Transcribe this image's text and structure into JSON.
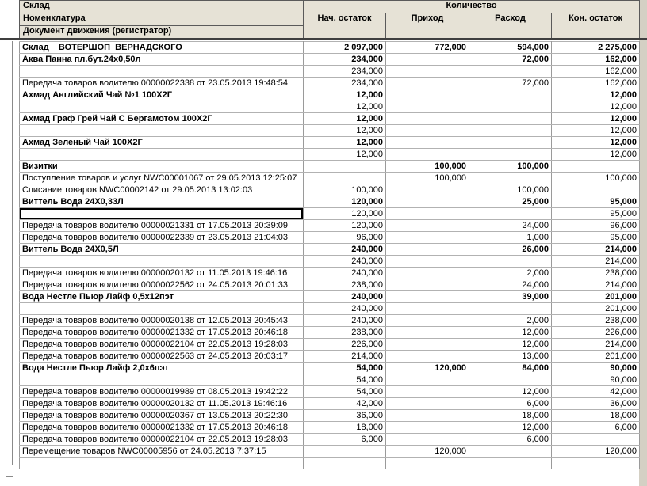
{
  "header": {
    "rows": [
      "Склад",
      "Номенклатура",
      "Документ движения (регистратор)"
    ],
    "quantity": "Количество",
    "columns": [
      "Нач. остаток",
      "Приход",
      "Расход",
      "Кон. остаток"
    ]
  },
  "rows": [
    {
      "type": "warehouse",
      "label": "Склад _ ВОТЕРШОП_ВЕРНАДСКОГО",
      "values": [
        "2 097,000",
        "772,000",
        "594,000",
        "2 275,000"
      ]
    },
    {
      "type": "product",
      "label": "Аква Панна пл.бут.24х0,50л",
      "values": [
        "234,000",
        "",
        "72,000",
        "162,000"
      ]
    },
    {
      "type": "subtotal",
      "label": "",
      "values": [
        "234,000",
        "",
        "",
        "162,000"
      ]
    },
    {
      "type": "document",
      "label": "Передача товаров водителю 00000022338 от 23.05.2013 19:48:54",
      "values": [
        "234,000",
        "",
        "72,000",
        "162,000"
      ]
    },
    {
      "type": "product",
      "label": "Ахмад Английский Чай №1 100Х2Г",
      "values": [
        "12,000",
        "",
        "",
        "12,000"
      ]
    },
    {
      "type": "subtotal",
      "label": "",
      "values": [
        "12,000",
        "",
        "",
        "12,000"
      ]
    },
    {
      "type": "product",
      "label": "Ахмад Граф Грей Чай С Бергамотом 100Х2Г",
      "values": [
        "12,000",
        "",
        "",
        "12,000"
      ]
    },
    {
      "type": "subtotal",
      "label": "",
      "values": [
        "12,000",
        "",
        "",
        "12,000"
      ]
    },
    {
      "type": "product",
      "label": "Ахмад Зеленый Чай 100Х2Г",
      "values": [
        "12,000",
        "",
        "",
        "12,000"
      ]
    },
    {
      "type": "subtotal",
      "label": "",
      "values": [
        "12,000",
        "",
        "",
        "12,000"
      ]
    },
    {
      "type": "product",
      "label": "Визитки",
      "values": [
        "",
        "100,000",
        "100,000",
        ""
      ]
    },
    {
      "type": "document-wrap",
      "label": "Поступление товаров и услуг NWC00001067 от 29.05.2013 12:25:07",
      "values": [
        "",
        "100,000",
        "",
        "100,000"
      ]
    },
    {
      "type": "document",
      "label": "Списание товаров NWC00002142 от 29.05.2013 13:02:03",
      "values": [
        "100,000",
        "",
        "100,000",
        ""
      ]
    },
    {
      "type": "product",
      "label": "Виттель Вода 24Х0,33Л",
      "values": [
        "120,000",
        "",
        "25,000",
        "95,000"
      ]
    },
    {
      "type": "selected",
      "label": "",
      "values": [
        "120,000",
        "",
        "",
        "95,000"
      ]
    },
    {
      "type": "document",
      "label": "Передача товаров водителю 00000021331 от 17.05.2013 20:39:09",
      "values": [
        "120,000",
        "",
        "24,000",
        "96,000"
      ]
    },
    {
      "type": "document",
      "label": "Передача товаров водителю 00000022339 от 23.05.2013 21:04:03",
      "values": [
        "96,000",
        "",
        "1,000",
        "95,000"
      ]
    },
    {
      "type": "product",
      "label": "Виттель Вода 24Х0,5Л",
      "values": [
        "240,000",
        "",
        "26,000",
        "214,000"
      ]
    },
    {
      "type": "subtotal",
      "label": "",
      "values": [
        "240,000",
        "",
        "",
        "214,000"
      ]
    },
    {
      "type": "document",
      "label": "Передача товаров водителю 00000020132 от 11.05.2013 19:46:16",
      "values": [
        "240,000",
        "",
        "2,000",
        "238,000"
      ]
    },
    {
      "type": "document",
      "label": "Передача товаров водителю 00000022562 от 24.05.2013 20:01:33",
      "values": [
        "238,000",
        "",
        "24,000",
        "214,000"
      ]
    },
    {
      "type": "product",
      "label": "Вода Нестле Пьюр Лайф 0,5х12пэт",
      "values": [
        "240,000",
        "",
        "39,000",
        "201,000"
      ]
    },
    {
      "type": "subtotal",
      "label": "",
      "values": [
        "240,000",
        "",
        "",
        "201,000"
      ]
    },
    {
      "type": "document",
      "label": "Передача товаров водителю 00000020138 от 12.05.2013 20:45:43",
      "values": [
        "240,000",
        "",
        "2,000",
        "238,000"
      ]
    },
    {
      "type": "document",
      "label": "Передача товаров водителю 00000021332 от 17.05.2013 20:46:18",
      "values": [
        "238,000",
        "",
        "12,000",
        "226,000"
      ]
    },
    {
      "type": "document",
      "label": "Передача товаров водителю 00000022104 от 22.05.2013 19:28:03",
      "values": [
        "226,000",
        "",
        "12,000",
        "214,000"
      ]
    },
    {
      "type": "document",
      "label": "Передача товаров водителю 00000022563 от 24.05.2013 20:03:17",
      "values": [
        "214,000",
        "",
        "13,000",
        "201,000"
      ]
    },
    {
      "type": "product",
      "label": "Вода Нестле Пьюр Лайф 2,0х6пэт",
      "values": [
        "54,000",
        "120,000",
        "84,000",
        "90,000"
      ]
    },
    {
      "type": "subtotal",
      "label": "",
      "values": [
        "54,000",
        "",
        "",
        "90,000"
      ]
    },
    {
      "type": "document",
      "label": "Передача товаров водителю 00000019989 от 08.05.2013 19:42:22",
      "values": [
        "54,000",
        "",
        "12,000",
        "42,000"
      ]
    },
    {
      "type": "document",
      "label": "Передача товаров водителю 00000020132 от 11.05.2013 19:46:16",
      "values": [
        "42,000",
        "",
        "6,000",
        "36,000"
      ]
    },
    {
      "type": "document",
      "label": "Передача товаров водителю 00000020367 от 13.05.2013 20:22:30",
      "values": [
        "36,000",
        "",
        "18,000",
        "18,000"
      ]
    },
    {
      "type": "document",
      "label": "Передача товаров водителю 00000021332 от 17.05.2013 20:46:18",
      "values": [
        "18,000",
        "",
        "12,000",
        "6,000"
      ]
    },
    {
      "type": "document",
      "label": "Передача товаров водителю 00000022104 от 22.05.2013 19:28:03",
      "values": [
        "6,000",
        "",
        "6,000",
        ""
      ]
    },
    {
      "type": "document",
      "label": "Перемещение товаров NWC00005956 от 24.05.2013 7:37:15",
      "values": [
        "",
        "120,000",
        "",
        "120,000"
      ]
    },
    {
      "type": "empty",
      "label": "",
      "values": [
        "",
        "",
        "",
        ""
      ]
    }
  ]
}
